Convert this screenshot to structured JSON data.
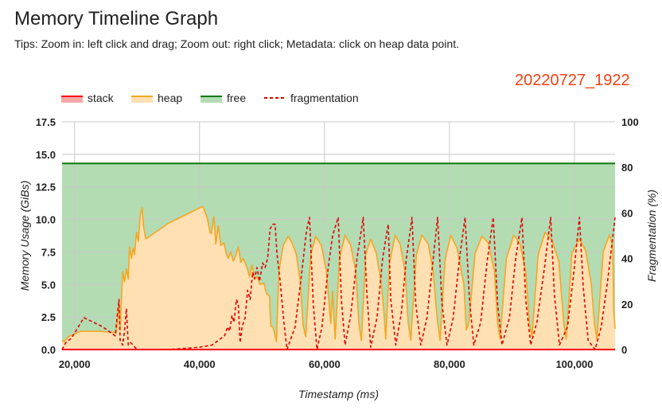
{
  "header": {
    "title": "Memory Timeline Graph",
    "tips": "Tips: Zoom in: left click and drag; Zoom out: right click; Metadata: click on heap data point.",
    "run_id": "20220727_1922"
  },
  "colors": {
    "stack": "#ff0000",
    "stack_fill": "#f4a8a8",
    "heap": "#f5a623",
    "heap_fill": "#ffe0b2",
    "free": "#0d7a0d",
    "free_fill": "#b3dcb3",
    "fragmentation": "#e00000",
    "run_id": "#f43f13"
  },
  "chart_data": {
    "type": "area",
    "xlabel": "Timestamp (ms)",
    "ylabel": "Memory Usage (GiBs)",
    "y2label": "Fragmentation (%)",
    "xlim": [
      18000,
      106500
    ],
    "ylim": [
      0,
      17.5
    ],
    "y2lim": [
      0,
      100
    ],
    "xticks": [
      20000,
      40000,
      60000,
      80000,
      100000
    ],
    "xtick_labels": [
      "20,000",
      "40,000",
      "60,000",
      "80,000",
      "100,000"
    ],
    "yticks": [
      0,
      2.5,
      5,
      7.5,
      10,
      12.5,
      15,
      17.5
    ],
    "ytick_labels": [
      "0.0",
      "2.5",
      "5.0",
      "7.5",
      "10.0",
      "12.5",
      "15.0",
      "17.5"
    ],
    "y2ticks": [
      0,
      20,
      40,
      60,
      80,
      100
    ],
    "y2tick_labels": [
      "0",
      "20",
      "40",
      "60",
      "80",
      "100"
    ],
    "grid": true,
    "legend_position": "top-left",
    "series": [
      {
        "name": "stack",
        "style": "area",
        "axis": "left",
        "points": [
          [
            18000,
            0
          ],
          [
            106500,
            0
          ]
        ]
      },
      {
        "name": "heap",
        "style": "area",
        "axis": "left",
        "points": [
          [
            18000,
            0.7
          ],
          [
            18300,
            0.6
          ],
          [
            19000,
            1.0
          ],
          [
            21000,
            1.4
          ],
          [
            24000,
            1.4
          ],
          [
            26700,
            1.3
          ],
          [
            27100,
            3.5
          ],
          [
            27300,
            1.5
          ],
          [
            27700,
            6.0
          ],
          [
            28000,
            5.2
          ],
          [
            28300,
            6.2
          ],
          [
            28600,
            5.4
          ],
          [
            28800,
            7.9
          ],
          [
            29100,
            7.0
          ],
          [
            29400,
            7.8
          ],
          [
            29600,
            7.3
          ],
          [
            29900,
            9.0
          ],
          [
            30200,
            8.3
          ],
          [
            30500,
            10.3
          ],
          [
            30800,
            10.9
          ],
          [
            31000,
            9.6
          ],
          [
            31400,
            8.5
          ],
          [
            35000,
            9.7
          ],
          [
            40500,
            11.0
          ],
          [
            41200,
            10.2
          ],
          [
            41700,
            9.0
          ],
          [
            41900,
            8.9
          ],
          [
            42300,
            10.2
          ],
          [
            42600,
            8.1
          ],
          [
            43000,
            9.5
          ],
          [
            43400,
            8.0
          ],
          [
            43900,
            8.2
          ],
          [
            44300,
            7.3
          ],
          [
            44600,
            7.0
          ],
          [
            45000,
            7.5
          ],
          [
            45400,
            6.8
          ],
          [
            45800,
            7.2
          ],
          [
            46200,
            7.9
          ],
          [
            46600,
            6.7
          ],
          [
            47000,
            7.0
          ],
          [
            47600,
            6.3
          ],
          [
            48000,
            5.6
          ],
          [
            48400,
            6.5
          ],
          [
            48800,
            5.4
          ],
          [
            49200,
            5.6
          ],
          [
            49700,
            5.0
          ],
          [
            50300,
            5.1
          ],
          [
            50700,
            4.3
          ],
          [
            51200,
            4.1
          ],
          [
            51400,
            1.8
          ],
          [
            51800,
            1.7
          ],
          [
            52300,
            0.6
          ],
          [
            52700,
            6.0
          ],
          [
            53400,
            8.0
          ],
          [
            54200,
            8.7
          ],
          [
            54800,
            8.2
          ],
          [
            55500,
            7.3
          ],
          [
            56100,
            5.3
          ],
          [
            56600,
            1.8
          ],
          [
            57000,
            1.0
          ],
          [
            57800,
            7.3
          ],
          [
            58600,
            8.7
          ],
          [
            59500,
            8.0
          ],
          [
            60300,
            6.0
          ],
          [
            61000,
            2.0
          ],
          [
            61300,
            4.5
          ],
          [
            61700,
            0.8
          ],
          [
            62400,
            7.0
          ],
          [
            63300,
            8.8
          ],
          [
            64200,
            8.0
          ],
          [
            65000,
            6.0
          ],
          [
            65500,
            2.0
          ],
          [
            65900,
            0.7
          ],
          [
            66600,
            7.3
          ],
          [
            67400,
            8.5
          ],
          [
            68300,
            7.4
          ],
          [
            69100,
            5.0
          ],
          [
            69500,
            3.0
          ],
          [
            69800,
            0.8
          ],
          [
            70400,
            6.6
          ],
          [
            71300,
            8.8
          ],
          [
            72100,
            8.1
          ],
          [
            72900,
            6.0
          ],
          [
            73400,
            2.0
          ],
          [
            73800,
            0.7
          ],
          [
            74700,
            7.3
          ],
          [
            75600,
            8.8
          ],
          [
            76600,
            8.1
          ],
          [
            77400,
            6.0
          ],
          [
            78000,
            2.5
          ],
          [
            78500,
            0.7
          ],
          [
            79300,
            6.9
          ],
          [
            80200,
            8.8
          ],
          [
            81200,
            7.8
          ],
          [
            82300,
            5.0
          ],
          [
            82700,
            1.5
          ],
          [
            83100,
            2.0
          ],
          [
            84100,
            7.4
          ],
          [
            85200,
            8.7
          ],
          [
            86200,
            8.2
          ],
          [
            87200,
            6.0
          ],
          [
            87700,
            2.0
          ],
          [
            88100,
            0.8
          ],
          [
            89100,
            7.0
          ],
          [
            90300,
            8.8
          ],
          [
            91300,
            8.1
          ],
          [
            92200,
            6.0
          ],
          [
            92800,
            2.0
          ],
          [
            93200,
            1.0
          ],
          [
            94200,
            7.3
          ],
          [
            95300,
            9.0
          ],
          [
            96400,
            8.4
          ],
          [
            97500,
            6.8
          ],
          [
            98300,
            2.0
          ],
          [
            98700,
            0.8
          ],
          [
            99600,
            7.4
          ],
          [
            100800,
            8.5
          ],
          [
            101800,
            7.6
          ],
          [
            102700,
            5.0
          ],
          [
            103200,
            2.0
          ],
          [
            103600,
            0.8
          ],
          [
            104600,
            7.5
          ],
          [
            105600,
            8.8
          ],
          [
            106100,
            8.0
          ],
          [
            106300,
            3.0
          ],
          [
            106500,
            1.6
          ]
        ]
      },
      {
        "name": "free",
        "style": "area",
        "axis": "left",
        "points": [
          [
            18000,
            14.3
          ],
          [
            106500,
            14.3
          ]
        ]
      },
      {
        "name": "fragmentation",
        "style": "dashed-line",
        "axis": "right",
        "points": [
          [
            18000,
            0
          ],
          [
            18600,
            3
          ],
          [
            19500,
            5
          ],
          [
            21500,
            14
          ],
          [
            24500,
            10
          ],
          [
            26500,
            6
          ],
          [
            27100,
            22
          ],
          [
            27300,
            4
          ],
          [
            27700,
            2
          ],
          [
            28000,
            8
          ],
          [
            28300,
            18
          ],
          [
            28600,
            2
          ],
          [
            29000,
            3
          ],
          [
            30000,
            0
          ],
          [
            35000,
            0
          ],
          [
            40000,
            1
          ],
          [
            42000,
            2
          ],
          [
            43000,
            4
          ],
          [
            44000,
            6
          ],
          [
            44500,
            10
          ],
          [
            44800,
            8
          ],
          [
            45200,
            15
          ],
          [
            45500,
            12
          ],
          [
            45900,
            22
          ],
          [
            46200,
            20
          ],
          [
            46500,
            3
          ],
          [
            46800,
            10
          ],
          [
            47300,
            14
          ],
          [
            47700,
            26
          ],
          [
            48100,
            22
          ],
          [
            48500,
            34
          ],
          [
            48800,
            31
          ],
          [
            49200,
            36
          ],
          [
            49600,
            30
          ],
          [
            50100,
            38
          ],
          [
            50500,
            36
          ],
          [
            50900,
            40
          ],
          [
            51300,
            53
          ],
          [
            51700,
            55
          ],
          [
            52100,
            55
          ],
          [
            52400,
            42
          ],
          [
            52900,
            30
          ],
          [
            53500,
            12
          ],
          [
            54000,
            0
          ],
          [
            55300,
            10
          ],
          [
            56200,
            30
          ],
          [
            57100,
            52
          ],
          [
            57600,
            58
          ],
          [
            58200,
            20
          ],
          [
            58800,
            0
          ],
          [
            59600,
            10
          ],
          [
            60600,
            36
          ],
          [
            61300,
            50
          ],
          [
            62200,
            58
          ],
          [
            62700,
            22
          ],
          [
            63300,
            2
          ],
          [
            64200,
            15
          ],
          [
            65200,
            40
          ],
          [
            66200,
            58
          ],
          [
            66800,
            24
          ],
          [
            67400,
            1
          ],
          [
            68400,
            14
          ],
          [
            69300,
            40
          ],
          [
            70200,
            55
          ],
          [
            70600,
            22
          ],
          [
            71400,
            2
          ],
          [
            72300,
            16
          ],
          [
            73100,
            40
          ],
          [
            74000,
            58
          ],
          [
            74600,
            20
          ],
          [
            75400,
            2
          ],
          [
            76400,
            14
          ],
          [
            77400,
            40
          ],
          [
            78100,
            58
          ],
          [
            78800,
            20
          ],
          [
            79600,
            2
          ],
          [
            80600,
            14
          ],
          [
            81600,
            40
          ],
          [
            82500,
            58
          ],
          [
            83200,
            22
          ],
          [
            83900,
            2
          ],
          [
            85000,
            12
          ],
          [
            86000,
            38
          ],
          [
            87000,
            58
          ],
          [
            87700,
            20
          ],
          [
            88400,
            2
          ],
          [
            89600,
            14
          ],
          [
            90600,
            40
          ],
          [
            91600,
            58
          ],
          [
            92200,
            22
          ],
          [
            93000,
            2
          ],
          [
            94000,
            12
          ],
          [
            95200,
            36
          ],
          [
            96200,
            58
          ],
          [
            96800,
            24
          ],
          [
            97600,
            2
          ],
          [
            98900,
            10
          ],
          [
            99900,
            34
          ],
          [
            100800,
            58
          ],
          [
            101400,
            28
          ],
          [
            102200,
            4
          ],
          [
            103300,
            0
          ],
          [
            104300,
            10
          ],
          [
            105300,
            30
          ],
          [
            106500,
            58
          ]
        ]
      }
    ]
  }
}
